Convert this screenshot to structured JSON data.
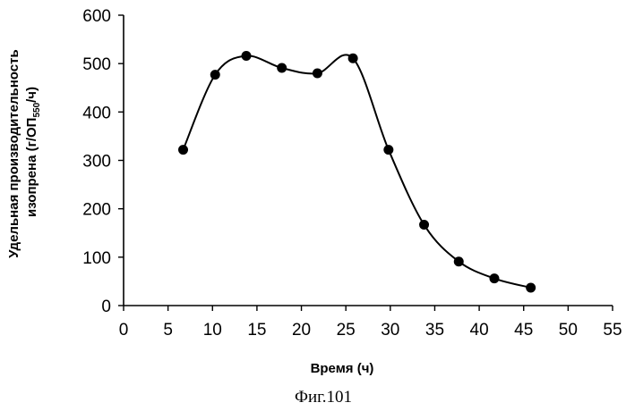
{
  "chart_data": {
    "type": "line",
    "title": "",
    "xlabel": "Время (ч)",
    "ylabel_line1": "Удельная производительность",
    "ylabel_line2_prefix": "изопрена (г/ОП",
    "ylabel_subscript": "550",
    "ylabel_line2_suffix": "/ч)",
    "xlim": [
      0,
      55
    ],
    "ylim": [
      0,
      600
    ],
    "xticks": [
      0,
      5,
      10,
      15,
      20,
      25,
      30,
      35,
      40,
      45,
      50,
      55
    ],
    "yticks": [
      0,
      100,
      200,
      300,
      400,
      500,
      600
    ],
    "grid": false,
    "smooth": true,
    "marker": "circle",
    "color": "#000000",
    "series": [
      {
        "x": [
          6.7,
          10.3,
          13.8,
          17.8,
          21.8,
          25.8,
          29.8,
          33.8,
          37.7,
          41.7,
          45.8
        ],
        "y": [
          322,
          477,
          516,
          491,
          480,
          511,
          322,
          167,
          91,
          56,
          37
        ]
      }
    ]
  },
  "caption": "Фиг.101"
}
